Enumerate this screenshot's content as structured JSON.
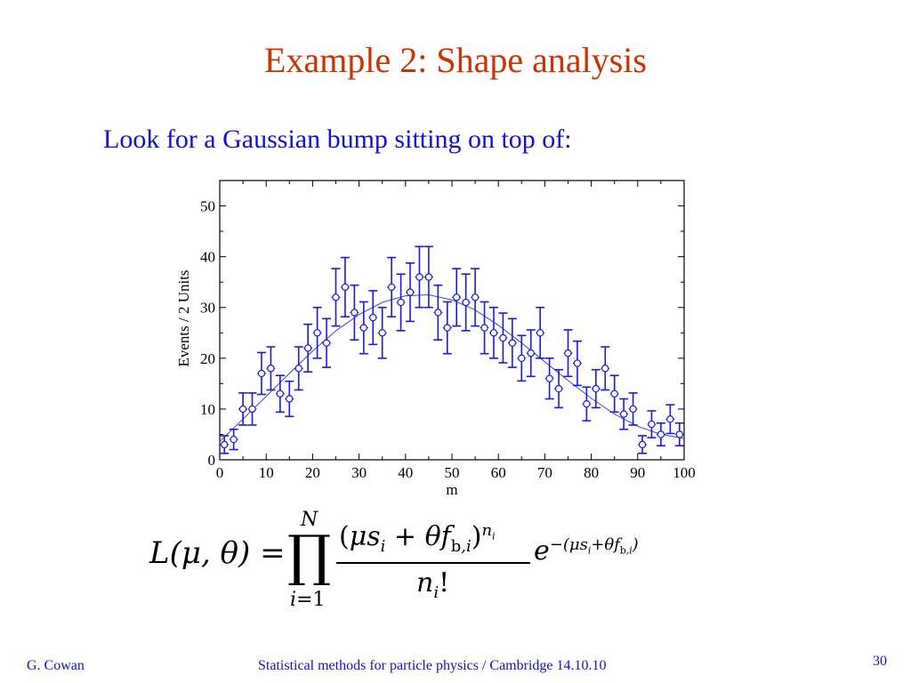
{
  "slide": {
    "title": "Example 2:  Shape analysis",
    "subtitle": "Look for a Gaussian bump sitting on top of:",
    "footer_author": "G. Cowan",
    "footer_course": "Statistical methods for particle physics / Cambridge 14.10.10",
    "page_number": "30"
  },
  "formula": {
    "lhs": "L(μ, θ) =",
    "prod_upper": "N",
    "prod_lower": "i=1",
    "numerator": "(μs_i + θf_b,i)^n_i",
    "denominator": "n_i!",
    "exponential": "e^−(μs_i+θf_b,i)"
  },
  "colors": {
    "title": "#cc3300",
    "text": "#1010d8",
    "data": "#1a1ae6",
    "curve": "#3a4ad8"
  },
  "chart_data": {
    "type": "scatter",
    "xlabel": "m",
    "ylabel": "Events / 2 Units",
    "xlim": [
      0,
      100
    ],
    "ylim": [
      0,
      55
    ],
    "xticks": [
      0,
      10,
      20,
      30,
      40,
      50,
      60,
      70,
      80,
      90,
      100
    ],
    "yticks": [
      0,
      10,
      20,
      30,
      40,
      50
    ],
    "series": [
      {
        "x": [
          1,
          3,
          5,
          7,
          9,
          11,
          13,
          15,
          17,
          19,
          21,
          23,
          25,
          27,
          29,
          31,
          33,
          35,
          37,
          39,
          41,
          43,
          45,
          47,
          49,
          51,
          53,
          55,
          57,
          59,
          61,
          63,
          65,
          67,
          69,
          71,
          73,
          75,
          77,
          79,
          81,
          83,
          85,
          87,
          89,
          91,
          93,
          95,
          97,
          99
        ],
        "y": [
          3,
          4,
          10,
          10,
          17,
          18,
          13,
          12,
          18,
          22,
          25,
          23,
          32,
          34,
          29,
          26,
          28,
          25,
          34,
          31,
          33,
          36,
          36,
          29,
          26,
          32,
          31,
          32,
          26,
          25,
          24,
          23,
          20,
          21,
          25,
          16,
          14,
          21,
          19,
          11,
          14,
          18,
          13,
          9,
          10,
          3,
          7,
          5,
          8,
          5
        ]
      }
    ],
    "fit_curve": {
      "x": [
        0,
        5,
        10,
        15,
        20,
        25,
        30,
        35,
        40,
        45,
        50,
        55,
        60,
        65,
        70,
        75,
        80,
        85,
        90,
        95,
        100
      ],
      "y": [
        3.6,
        8,
        12.5,
        17,
        21.4,
        25.4,
        28.6,
        31,
        32.3,
        32.5,
        31.5,
        29.5,
        26.5,
        23,
        19.3,
        15.6,
        12.1,
        9,
        6.6,
        5,
        4.2
      ]
    }
  }
}
